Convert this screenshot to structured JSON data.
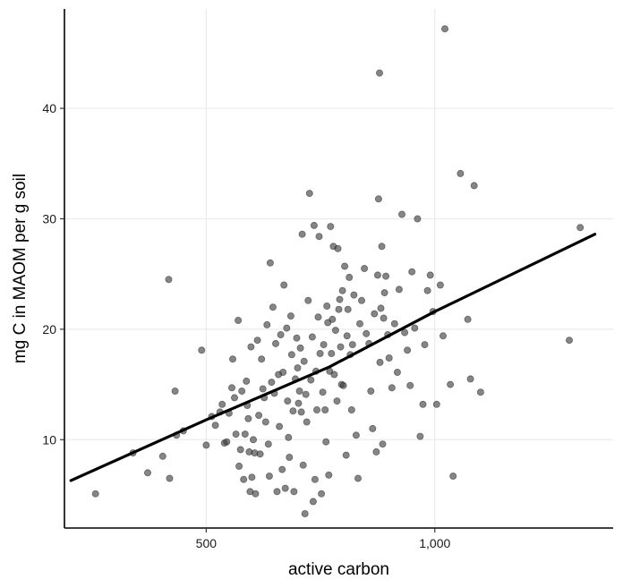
{
  "chart_data": {
    "type": "scatter",
    "xlabel": "active carbon",
    "ylabel": "mg C in MAOM per g soil",
    "xlim": [
      190,
      1390
    ],
    "ylim": [
      2,
      49
    ],
    "x_ticks": [
      {
        "value": 500,
        "label": "500"
      },
      {
        "value": 1000,
        "label": "1,000"
      }
    ],
    "y_ticks": [
      {
        "value": 10,
        "label": "10"
      },
      {
        "value": 20,
        "label": "20"
      },
      {
        "value": 30,
        "label": "30"
      },
      {
        "value": 40,
        "label": "40"
      }
    ],
    "grid": true,
    "point_color": "#3a3a3a",
    "line_color": "#000000",
    "trend_line": [
      [
        204,
        6.3
      ],
      [
        500,
        11.8
      ],
      [
        770,
        16.6
      ],
      [
        1000,
        21.6
      ],
      [
        1350,
        28.6
      ]
    ],
    "points": [
      [
        258,
        5.1
      ],
      [
        340,
        8.8
      ],
      [
        372,
        7.0
      ],
      [
        405,
        8.5
      ],
      [
        418,
        24.5
      ],
      [
        420,
        6.5
      ],
      [
        432,
        14.4
      ],
      [
        435,
        10.4
      ],
      [
        450,
        10.8
      ],
      [
        490,
        18.1
      ],
      [
        500,
        9.5
      ],
      [
        512,
        12.1
      ],
      [
        520,
        11.3
      ],
      [
        530,
        12.5
      ],
      [
        535,
        13.2
      ],
      [
        540,
        9.7
      ],
      [
        545,
        9.8
      ],
      [
        550,
        12.4
      ],
      [
        556,
        14.7
      ],
      [
        558,
        17.3
      ],
      [
        562,
        13.8
      ],
      [
        565,
        10.5
      ],
      [
        570,
        20.8
      ],
      [
        572,
        7.6
      ],
      [
        575,
        9.1
      ],
      [
        578,
        14.4
      ],
      [
        582,
        6.4
      ],
      [
        585,
        10.5
      ],
      [
        588,
        15.3
      ],
      [
        590,
        13.1
      ],
      [
        592,
        11.9
      ],
      [
        594,
        8.9
      ],
      [
        596,
        5.3
      ],
      [
        598,
        18.4
      ],
      [
        600,
        6.6
      ],
      [
        603,
        10.0
      ],
      [
        606,
        8.8
      ],
      [
        608,
        5.1
      ],
      [
        612,
        19.0
      ],
      [
        615,
        12.2
      ],
      [
        618,
        8.7
      ],
      [
        621,
        17.3
      ],
      [
        624,
        14.6
      ],
      [
        627,
        13.8
      ],
      [
        630,
        11.6
      ],
      [
        633,
        20.4
      ],
      [
        636,
        9.6
      ],
      [
        638,
        6.7
      ],
      [
        640,
        26.0
      ],
      [
        643,
        15.2
      ],
      [
        646,
        22.0
      ],
      [
        649,
        14.2
      ],
      [
        652,
        18.7
      ],
      [
        655,
        5.3
      ],
      [
        658,
        15.9
      ],
      [
        660,
        11.2
      ],
      [
        663,
        19.5
      ],
      [
        666,
        7.3
      ],
      [
        668,
        16.1
      ],
      [
        670,
        24.0
      ],
      [
        673,
        5.6
      ],
      [
        676,
        20.1
      ],
      [
        678,
        13.5
      ],
      [
        680,
        10.2
      ],
      [
        682,
        8.4
      ],
      [
        685,
        21.2
      ],
      [
        687,
        17.7
      ],
      [
        690,
        12.6
      ],
      [
        692,
        5.3
      ],
      [
        695,
        15.5
      ],
      [
        698,
        19.2
      ],
      [
        700,
        16.5
      ],
      [
        702,
        13.3
      ],
      [
        704,
        14.4
      ],
      [
        706,
        18.3
      ],
      [
        708,
        12.5
      ],
      [
        710,
        28.6
      ],
      [
        712,
        7.7
      ],
      [
        714,
        17.1
      ],
      [
        716,
        3.3
      ],
      [
        718,
        14.1
      ],
      [
        720,
        11.6
      ],
      [
        723,
        22.6
      ],
      [
        726,
        32.3
      ],
      [
        729,
        15.4
      ],
      [
        732,
        19.3
      ],
      [
        734,
        4.4
      ],
      [
        736,
        29.4
      ],
      [
        738,
        6.4
      ],
      [
        740,
        16.2
      ],
      [
        742,
        12.7
      ],
      [
        745,
        21.1
      ],
      [
        747,
        28.4
      ],
      [
        749,
        17.8
      ],
      [
        752,
        5.1
      ],
      [
        755,
        14.3
      ],
      [
        757,
        18.6
      ],
      [
        760,
        12.7
      ],
      [
        762,
        9.8
      ],
      [
        764,
        22.1
      ],
      [
        766,
        20.6
      ],
      [
        768,
        6.8
      ],
      [
        770,
        16.2
      ],
      [
        772,
        29.3
      ],
      [
        774,
        17.8
      ],
      [
        776,
        20.9
      ],
      [
        778,
        27.5
      ],
      [
        780,
        15.9
      ],
      [
        783,
        19.9
      ],
      [
        786,
        13.5
      ],
      [
        788,
        27.3
      ],
      [
        790,
        21.8
      ],
      [
        792,
        22.7
      ],
      [
        794,
        18.4
      ],
      [
        796,
        15.0
      ],
      [
        798,
        23.5
      ],
      [
        800,
        14.9
      ],
      [
        803,
        25.7
      ],
      [
        806,
        8.6
      ],
      [
        808,
        19.4
      ],
      [
        810,
        21.8
      ],
      [
        813,
        24.7
      ],
      [
        815,
        17.7
      ],
      [
        818,
        12.7
      ],
      [
        820,
        18.6
      ],
      [
        823,
        23.1
      ],
      [
        828,
        10.4
      ],
      [
        832,
        6.5
      ],
      [
        836,
        20.5
      ],
      [
        840,
        22.6
      ],
      [
        846,
        25.5
      ],
      [
        850,
        19.6
      ],
      [
        856,
        18.7
      ],
      [
        860,
        14.4
      ],
      [
        864,
        11.0
      ],
      [
        868,
        21.4
      ],
      [
        872,
        8.9
      ],
      [
        875,
        24.9
      ],
      [
        877,
        31.8
      ],
      [
        879,
        43.2
      ],
      [
        880,
        17.0
      ],
      [
        882,
        21.9
      ],
      [
        884,
        27.5
      ],
      [
        886,
        9.6
      ],
      [
        888,
        21.0
      ],
      [
        890,
        23.3
      ],
      [
        893,
        24.8
      ],
      [
        897,
        19.5
      ],
      [
        900,
        17.4
      ],
      [
        906,
        14.7
      ],
      [
        912,
        20.5
      ],
      [
        918,
        16.1
      ],
      [
        922,
        23.6
      ],
      [
        928,
        30.4
      ],
      [
        934,
        19.7
      ],
      [
        940,
        18.1
      ],
      [
        946,
        14.9
      ],
      [
        950,
        25.2
      ],
      [
        956,
        20.1
      ],
      [
        962,
        30.0
      ],
      [
        968,
        10.3
      ],
      [
        974,
        13.2
      ],
      [
        978,
        18.6
      ],
      [
        984,
        23.5
      ],
      [
        990,
        24.9
      ],
      [
        996,
        21.6
      ],
      [
        1004,
        13.2
      ],
      [
        1012,
        24.0
      ],
      [
        1018,
        19.4
      ],
      [
        1022,
        47.2
      ],
      [
        1034,
        15.0
      ],
      [
        1040,
        6.7
      ],
      [
        1056,
        34.1
      ],
      [
        1072,
        20.9
      ],
      [
        1078,
        15.5
      ],
      [
        1086,
        33.0
      ],
      [
        1100,
        14.3
      ],
      [
        1294,
        19.0
      ],
      [
        1318,
        29.2
      ]
    ]
  }
}
